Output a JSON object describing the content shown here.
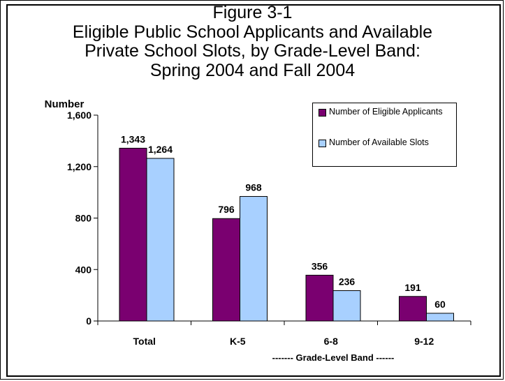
{
  "chart_data": {
    "type": "bar",
    "title_lines": [
      "Figure 3-1",
      "Eligible Public School Applicants and Available",
      "Private School Slots, by Grade-Level Band:",
      "Spring 2004 and Fall 2004"
    ],
    "ylabel": "Number",
    "xlabel": "------- Grade-Level Band ------",
    "categories": [
      "Total",
      "K-5",
      "6-8",
      "9-12"
    ],
    "ylim": [
      0,
      1600
    ],
    "yticks": [
      0,
      400,
      800,
      1200,
      1600
    ],
    "ytick_labels": [
      "0",
      "400",
      "800",
      "1,200",
      "1,600"
    ],
    "series": [
      {
        "name": "Number of Eligible Applicants",
        "color": "#7a0070",
        "values": [
          1343,
          796,
          356,
          191
        ],
        "labels": [
          "1,343",
          "796",
          "356",
          "191"
        ]
      },
      {
        "name": "Number of Available Slots",
        "color": "#a8d0ff",
        "values": [
          1264,
          968,
          236,
          60
        ],
        "labels": [
          "1,264",
          "968",
          "236",
          "60"
        ]
      }
    ],
    "legend_position": "top-right",
    "grid": false
  }
}
